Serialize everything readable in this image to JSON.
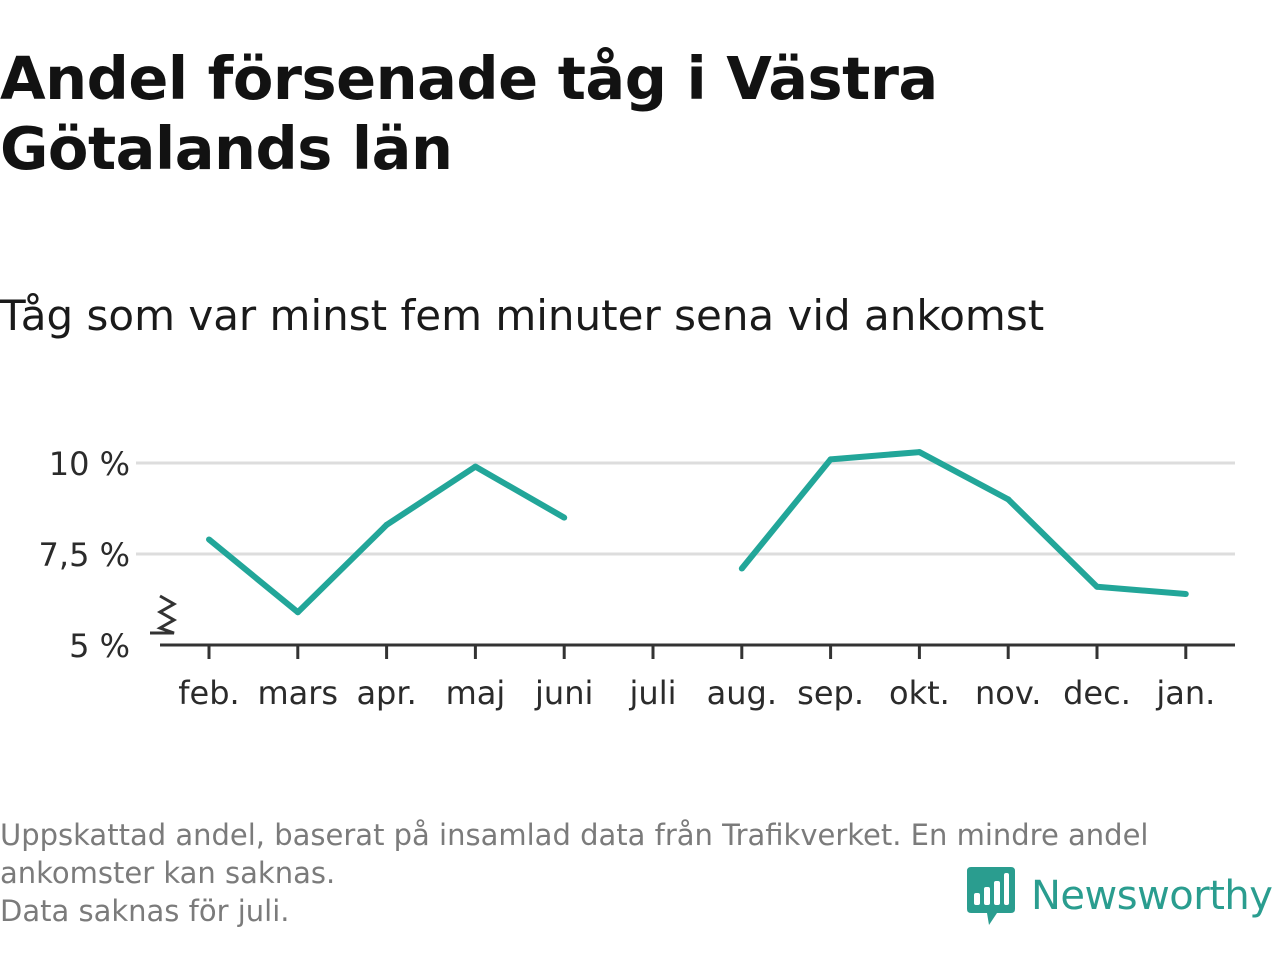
{
  "title": "Andel försenade tåg i Västra Götalands län",
  "subtitle": "Tåg som var minst fem minuter sena vid ankomst",
  "footnote": {
    "line1": "Uppskattad andel, baserat på insamlad data från Trafikverket. En mindre andel ankomster kan saknas.",
    "line2": "Data saknas för juli."
  },
  "brand": {
    "name": "Newsworthy",
    "color": "#2a9d8f",
    "icon": "newsworthy-logo-icon"
  },
  "chart_data": {
    "type": "line",
    "title": "Andel försenade tåg i Västra Götalands län",
    "subtitle": "Tåg som var minst fem minuter sena vid ankomst",
    "categories": [
      "feb.",
      "mars",
      "apr.",
      "maj",
      "juni",
      "juli",
      "aug.",
      "sep.",
      "okt.",
      "nov.",
      "dec.",
      "jan."
    ],
    "values": [
      7.9,
      5.9,
      8.3,
      9.9,
      8.5,
      null,
      7.1,
      10.1,
      10.3,
      9.0,
      6.6,
      6.4
    ],
    "y_ticks": [
      {
        "value": 5,
        "label": "5 %"
      },
      {
        "value": 7.5,
        "label": "7,5 %"
      },
      {
        "value": 10,
        "label": "10 %"
      }
    ],
    "ylim": [
      5,
      10.5
    ],
    "y_axis_break": true,
    "grid": true,
    "line_color": "#22a699",
    "grid_color": "#dddddd",
    "axis_color": "#333333"
  }
}
